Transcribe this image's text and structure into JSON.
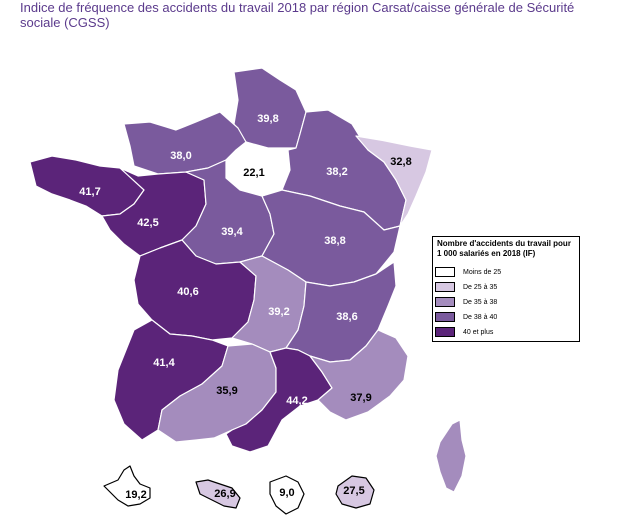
{
  "title": "Indice de fréquence des accidents du travail 2018 par région Carsat/caisse générale de Sécurité sociale (CGSS)",
  "colors": {
    "moins25": "#ffffff",
    "c25_35": "#d7c8e2",
    "c35_38": "#a48cbd",
    "c38_40": "#7a5a9d",
    "c40plus": "#5b2479"
  },
  "legend": {
    "title": "Nombre d'accidents du travail pour 1 000 salariés en 2018 (IF)",
    "items": [
      {
        "label": "Moins de 25",
        "color": "#ffffff"
      },
      {
        "label": "De 25 à 35",
        "color": "#d7c8e2"
      },
      {
        "label": "De 35 à 38",
        "color": "#a48cbd"
      },
      {
        "label": "De 38 à 40",
        "color": "#7a5a9d"
      },
      {
        "label": "40 et plus",
        "color": "#5b2479"
      }
    ]
  },
  "regions": {
    "nord": {
      "value": "39,8"
    },
    "normandie": {
      "value": "38,0"
    },
    "ile_de_france": {
      "value": "22,1"
    },
    "nord_est": {
      "value": "38,2"
    },
    "alsace_moselle": {
      "value": "32,8"
    },
    "bretagne": {
      "value": "41,7"
    },
    "pays_de_la_loire": {
      "value": "42,5"
    },
    "centre": {
      "value": "39,4"
    },
    "bourgogne_fc": {
      "value": "38,8"
    },
    "centre_ouest": {
      "value": "40,6"
    },
    "auvergne": {
      "value": "39,2"
    },
    "rhone_alpes": {
      "value": "38,6"
    },
    "aquitaine": {
      "value": "41,4"
    },
    "midi_pyrenees": {
      "value": "35,9"
    },
    "languedoc": {
      "value": "44,2"
    },
    "sud_est": {
      "value": "37,9"
    }
  },
  "territories": {
    "guadeloupe": {
      "value": "19,2"
    },
    "martinique": {
      "value": "26,9"
    },
    "guyane": {
      "value": "9,0"
    },
    "reunion": {
      "value": "27,5"
    }
  }
}
